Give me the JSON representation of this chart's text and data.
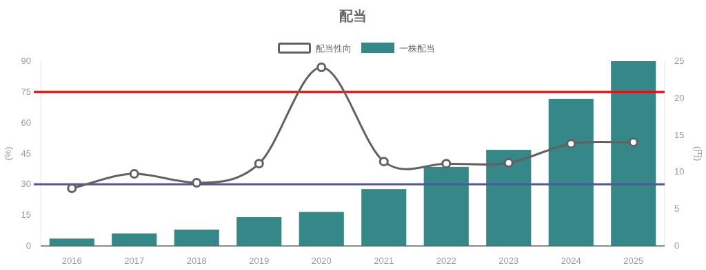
{
  "chart_data": {
    "type": "bar",
    "title": "配当",
    "ylabel": "(%)",
    "y2label": "(円)",
    "categories": [
      "2016",
      "2017",
      "2018",
      "2019",
      "2020",
      "2021",
      "2022",
      "2023",
      "2024",
      "2025"
    ],
    "ylim": [
      0,
      90
    ],
    "yticks": [
      0,
      15,
      30,
      45,
      60,
      75,
      90
    ],
    "y2lim": [
      0,
      25
    ],
    "y2ticks": [
      0,
      5,
      10,
      15,
      20,
      25
    ],
    "series": [
      {
        "name": "配当性向",
        "type": "line",
        "color": "#616161",
        "values": [
          28.1,
          35.1,
          30.8,
          40.1,
          87,
          41.1,
          40.1,
          40.5,
          49.8,
          50.5
        ]
      },
      {
        "name": "一株配当",
        "axis": "y2",
        "color": "#358887",
        "values": [
          1.0,
          1.7,
          2.2,
          3.9,
          4.6,
          7.7,
          10.7,
          13.0,
          19.9,
          25
        ]
      }
    ],
    "ref_lines": [
      {
        "axis": "y",
        "value": 75,
        "color": "#ff0000"
      },
      {
        "axis": "y",
        "value": 30,
        "color": "#55559b"
      }
    ],
    "legend": "top",
    "marker": "circle",
    "line_style": "solid",
    "grid": false
  }
}
